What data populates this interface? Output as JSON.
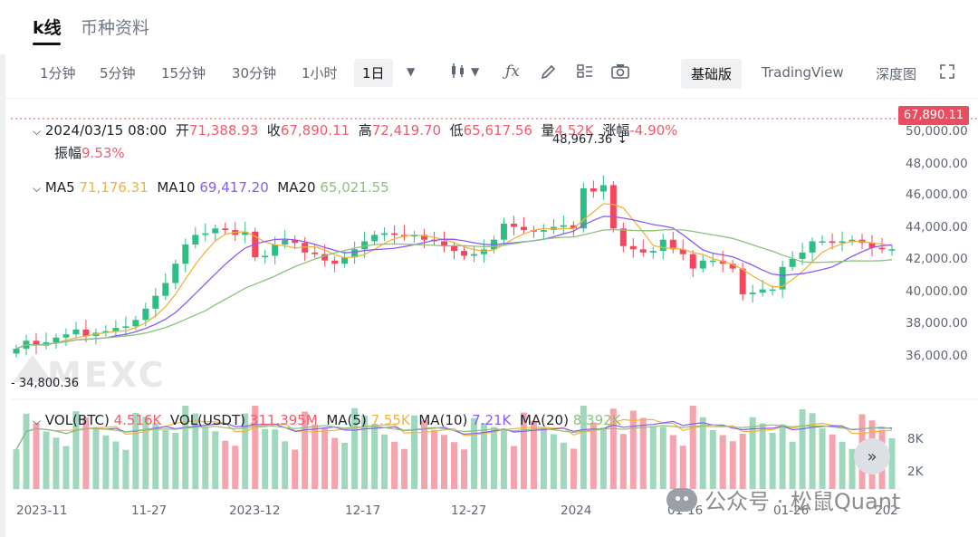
{
  "tabs": [
    "k线",
    "币种资料"
  ],
  "toolbar": {
    "intervals": [
      "1分钟",
      "5分钟",
      "15分钟",
      "30分钟",
      "1小时"
    ],
    "selected_interval": "1日",
    "basic_label": "基础版",
    "tradingview_label": "TradingView",
    "depth_label": "深度图"
  },
  "ohlc": {
    "datetime": "2024/03/15 08:00",
    "open_label": "开",
    "open": "71,388.93",
    "close_label": "收",
    "close": "67,890.11",
    "high_label": "高",
    "high": "72,419.70",
    "low_label": "低",
    "low": "65,617.56",
    "vol_label": "量",
    "vol": "4.52K",
    "change_label": "涨幅",
    "change": "-4.90%",
    "amp_label": "振幅",
    "amp": "9.53%"
  },
  "ma": {
    "ma5_label": "MA5",
    "ma5": "71,176.31",
    "ma10_label": "MA10",
    "ma10": "69,417.20",
    "ma20_label": "MA20",
    "ma20": "65,021.55"
  },
  "price_axis": [
    "50,000.00",
    "48,000.00",
    "46,000.00",
    "44,000.00",
    "42,000.00",
    "40,000.00",
    "38,000.00",
    "36,000.00"
  ],
  "current_price": "67,890.11",
  "high_marker": "48,967.36",
  "low_marker": "34,800.36",
  "vol": {
    "vol_btc_label": "VOL(BTC)",
    "vol_btc": "4.516K",
    "vol_usdt_label": "VOL(USDT)",
    "vol_usdt": "311.395M",
    "ma5_label": "MA(5)",
    "ma5": "7.55K",
    "ma10_label": "MA(10)",
    "ma10": "7.21K",
    "ma20_label": "MA(20)",
    "ma20": "8.392K"
  },
  "vol_axis": [
    "8K",
    "2K"
  ],
  "x_axis": [
    "2023-11",
    "11-27",
    "2023-12",
    "12-17",
    "12-27",
    "2024",
    "01-16",
    "01-26",
    "202"
  ],
  "brand": "MEXC",
  "watermark": "公众号 · 松鼠Quant",
  "colors": {
    "up": "#2ebd85",
    "down": "#f6465d",
    "ma5": "#f2b33d",
    "ma10": "#8a5cf5",
    "ma20": "#8cc27c"
  },
  "chart_data": {
    "type": "candlestick",
    "closes": [
      36500,
      37000,
      36700,
      36900,
      37200,
      37400,
      37700,
      37300,
      37500,
      37600,
      37800,
      37900,
      38300,
      39000,
      39800,
      40600,
      41800,
      43000,
      43600,
      43700,
      44000,
      43900,
      43600,
      43800,
      42200,
      42300,
      43000,
      43300,
      43100,
      42500,
      42400,
      42000,
      41800,
      42200,
      42700,
      43200,
      43600,
      43700,
      43600,
      43500,
      43600,
      43300,
      43200,
      42900,
      42600,
      42300,
      42400,
      42700,
      43300,
      44300,
      44100,
      43900,
      43800,
      43900,
      44100,
      44200,
      44000,
      46500,
      46300,
      46700,
      44000,
      42900,
      42700,
      42500,
      42600,
      43300,
      42700,
      42400,
      41500,
      42000,
      42000,
      41800,
      41500,
      39900,
      40000,
      40200,
      40200,
      41600,
      42100,
      42500,
      43200,
      43200,
      43100,
      43200,
      43300,
      43100,
      42800,
      42700,
      42700
    ]
  }
}
